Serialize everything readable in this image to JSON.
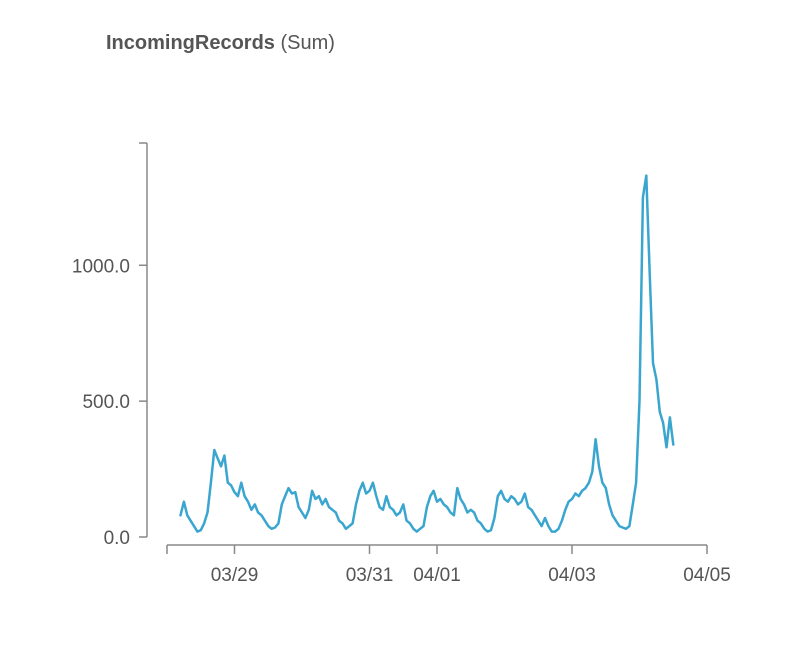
{
  "header": {
    "metric": "IncomingRecords",
    "stat": "(Sum)"
  },
  "chart_data": {
    "type": "line",
    "title": "IncomingRecords (Sum)",
    "xlabel": "",
    "ylabel": "",
    "x_tick_labels": [
      "03/29",
      "03/31",
      "04/01",
      "04/03",
      "04/05"
    ],
    "x_tick_days": [
      1.0,
      3.0,
      4.0,
      6.0,
      8.0
    ],
    "y_tick_labels": [
      "0.0",
      "500.0",
      "1000.0"
    ],
    "y_tick_values": [
      0,
      500,
      1000
    ],
    "xlim_days": [
      0.0,
      8.0
    ],
    "ylim": [
      0,
      1450
    ],
    "line_color": "#3aa6d0",
    "grid": false,
    "legend": "none",
    "series": [
      {
        "x": [
          0.2,
          0.25,
          0.3,
          0.35,
          0.4,
          0.45,
          0.5,
          0.55,
          0.6,
          0.65,
          0.7,
          0.75,
          0.8,
          0.85,
          0.9,
          0.95,
          1.0,
          1.05,
          1.1,
          1.15,
          1.2,
          1.25,
          1.3,
          1.35,
          1.4,
          1.45,
          1.5,
          1.55,
          1.6,
          1.65,
          1.7,
          1.75,
          1.8,
          1.85,
          1.9,
          1.95,
          2.0,
          2.05,
          2.1,
          2.15,
          2.2,
          2.25,
          2.3,
          2.35,
          2.4,
          2.45,
          2.5,
          2.55,
          2.6,
          2.65,
          2.7,
          2.75,
          2.8,
          2.85,
          2.9,
          2.95,
          3.0,
          3.05,
          3.1,
          3.15,
          3.2,
          3.25,
          3.3,
          3.35,
          3.4,
          3.45,
          3.5,
          3.55,
          3.6,
          3.65,
          3.7,
          3.75,
          3.8,
          3.85,
          3.9,
          3.95,
          4.0,
          4.05,
          4.1,
          4.15,
          4.2,
          4.25,
          4.3,
          4.35,
          4.4,
          4.45,
          4.5,
          4.55,
          4.6,
          4.65,
          4.7,
          4.75,
          4.8,
          4.85,
          4.9,
          4.95,
          5.0,
          5.05,
          5.1,
          5.15,
          5.2,
          5.25,
          5.3,
          5.35,
          5.4,
          5.45,
          5.5,
          5.55,
          5.6,
          5.65,
          5.7,
          5.75,
          5.8,
          5.85,
          5.9,
          5.95,
          6.0,
          6.05,
          6.1,
          6.15,
          6.2,
          6.25,
          6.3,
          6.35,
          6.4,
          6.45,
          6.5,
          6.55,
          6.6,
          6.65,
          6.7,
          6.75,
          6.8,
          6.85,
          6.9,
          6.95,
          7.0,
          7.05,
          7.1,
          7.15,
          7.2,
          7.25,
          7.3,
          7.35,
          7.4,
          7.45,
          7.5
        ],
        "y": [
          80,
          130,
          80,
          60,
          40,
          20,
          25,
          50,
          90,
          200,
          320,
          290,
          260,
          300,
          200,
          190,
          165,
          150,
          200,
          150,
          130,
          100,
          120,
          90,
          80,
          60,
          40,
          30,
          35,
          50,
          120,
          150,
          180,
          160,
          165,
          110,
          90,
          70,
          100,
          170,
          140,
          150,
          120,
          140,
          110,
          100,
          90,
          60,
          50,
          30,
          40,
          50,
          120,
          170,
          200,
          160,
          170,
          200,
          150,
          110,
          100,
          150,
          110,
          100,
          80,
          90,
          120,
          60,
          50,
          30,
          20,
          30,
          40,
          110,
          150,
          170,
          130,
          140,
          120,
          110,
          90,
          80,
          180,
          140,
          120,
          90,
          100,
          90,
          60,
          50,
          30,
          20,
          25,
          70,
          150,
          170,
          140,
          130,
          150,
          140,
          120,
          130,
          160,
          110,
          100,
          80,
          60,
          40,
          70,
          40,
          20,
          20,
          30,
          60,
          100,
          130,
          140,
          160,
          150,
          170,
          180,
          200,
          240,
          360,
          260,
          200,
          180,
          120,
          80,
          60,
          40,
          35,
          30,
          40,
          120,
          200,
          500,
          1250,
          1330,
          980,
          640,
          580,
          460,
          420,
          330,
          440,
          340
        ]
      }
    ]
  }
}
